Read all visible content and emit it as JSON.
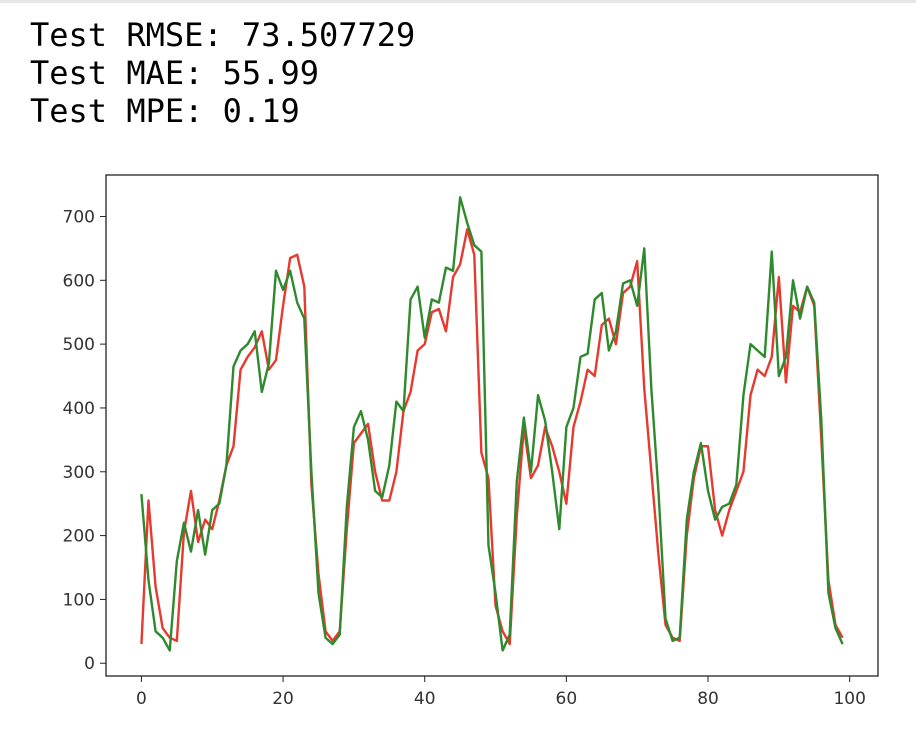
{
  "output": {
    "metrics": [
      "Test RMSE: 73.507729",
      "Test MAE: 55.99",
      "Test MPE: 0.19"
    ]
  },
  "chart_data": {
    "type": "line",
    "title": "",
    "xlabel": "",
    "ylabel": "",
    "xlim": [
      -5,
      104
    ],
    "ylim": [
      -20,
      765
    ],
    "x_ticks": [
      0,
      20,
      40,
      60,
      80,
      100
    ],
    "y_ticks": [
      0,
      100,
      200,
      300,
      400,
      500,
      600,
      700
    ],
    "grid": false,
    "legend": false,
    "series": [
      {
        "color": "#e8392f",
        "values": [
          30,
          255,
          120,
          55,
          40,
          35,
          205,
          270,
          190,
          225,
          210,
          255,
          310,
          340,
          460,
          480,
          495,
          520,
          460,
          475,
          560,
          635,
          640,
          590,
          280,
          140,
          50,
          35,
          50,
          210,
          345,
          360,
          375,
          300,
          255,
          255,
          300,
          395,
          425,
          490,
          500,
          550,
          555,
          520,
          605,
          625,
          680,
          640,
          330,
          290,
          90,
          50,
          30,
          230,
          370,
          290,
          310,
          370,
          340,
          300,
          250,
          370,
          410,
          460,
          450,
          530,
          540,
          500,
          580,
          590,
          630,
          430,
          300,
          170,
          60,
          40,
          35,
          200,
          290,
          340,
          340,
          240,
          200,
          240,
          270,
          300,
          420,
          460,
          450,
          480,
          605,
          440,
          560,
          550,
          590,
          560,
          350,
          130,
          60,
          40
        ]
      },
      {
        "color": "#2e8a2c",
        "values": [
          265,
          130,
          50,
          40,
          20,
          160,
          220,
          175,
          240,
          170,
          240,
          250,
          310,
          465,
          490,
          500,
          520,
          425,
          470,
          615,
          585,
          615,
          565,
          540,
          300,
          110,
          40,
          30,
          45,
          245,
          370,
          395,
          350,
          270,
          260,
          310,
          410,
          395,
          570,
          590,
          510,
          570,
          565,
          620,
          615,
          730,
          690,
          655,
          645,
          185,
          110,
          20,
          45,
          285,
          385,
          300,
          420,
          380,
          300,
          210,
          370,
          400,
          480,
          485,
          570,
          580,
          490,
          520,
          595,
          600,
          560,
          650,
          430,
          270,
          70,
          35,
          40,
          225,
          300,
          345,
          270,
          225,
          245,
          250,
          280,
          420,
          500,
          490,
          480,
          645,
          450,
          480,
          600,
          540,
          590,
          565,
          380,
          110,
          55,
          30
        ]
      }
    ]
  }
}
